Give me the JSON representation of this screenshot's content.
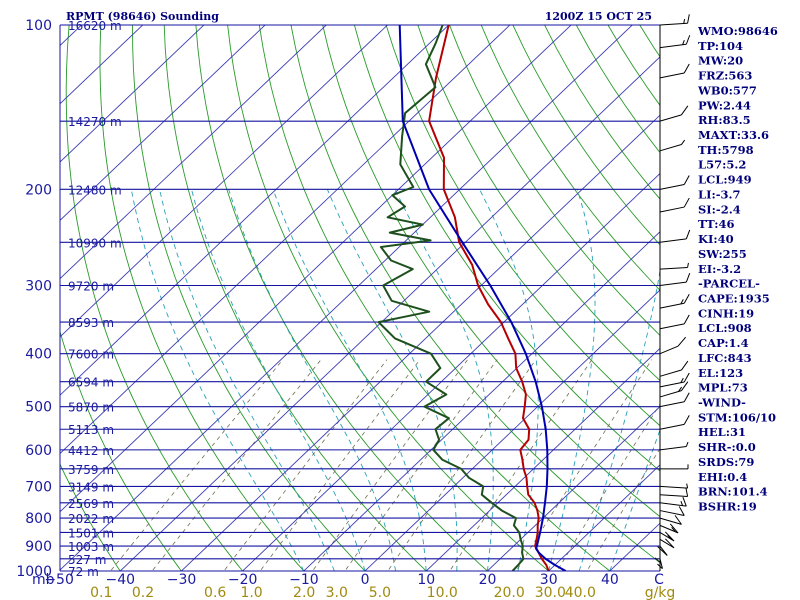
{
  "chart_data": {
    "type": "skew-t log-p sounding",
    "title": "RPMT (98646) Sounding",
    "valid_time": "1200Z 15 OCT 25",
    "pressure_axis": {
      "label": "mb",
      "ticks": [
        "100",
        "200",
        "300",
        "400",
        "500",
        "600",
        "700",
        "800",
        "900",
        "1000"
      ],
      "ticks_values": [
        100,
        200,
        300,
        400,
        500,
        600,
        700,
        800,
        900,
        1000
      ],
      "range": [
        100,
        1000
      ]
    },
    "height_levels": [
      {
        "p": 100,
        "label": "16620 m"
      },
      {
        "p": 150,
        "label": "14270 m"
      },
      {
        "p": 200,
        "label": "12480 m"
      },
      {
        "p": 250,
        "label": "10990 m"
      },
      {
        "p": 300,
        "label": "9720 m"
      },
      {
        "p": 350,
        "label": "8593 m"
      },
      {
        "p": 400,
        "label": "7600 m"
      },
      {
        "p": 450,
        "label": "6594 m"
      },
      {
        "p": 500,
        "label": "5870 m"
      },
      {
        "p": 550,
        "label": "5113 m"
      },
      {
        "p": 600,
        "label": "4412 m"
      },
      {
        "p": 650,
        "label": "3759 m"
      },
      {
        "p": 700,
        "label": "3149 m"
      },
      {
        "p": 750,
        "label": "2569 m"
      },
      {
        "p": 800,
        "label": "2022 m"
      },
      {
        "p": 850,
        "label": "1501 m"
      },
      {
        "p": 900,
        "label": "1003 m"
      },
      {
        "p": 950,
        "label": "527 m"
      },
      {
        "p": 1000,
        "label": "72 m"
      }
    ],
    "temperature_axis": {
      "label": "C",
      "ticks": [
        "−50",
        "−40",
        "−30",
        "−20",
        "−10",
        "0",
        "10",
        "20",
        "30",
        "40"
      ],
      "ticks_values": [
        -50,
        -40,
        -30,
        -20,
        -10,
        0,
        10,
        20,
        30,
        40
      ],
      "range": [
        -50,
        50
      ]
    },
    "mixing_ratio_axis": {
      "label": "g/kg",
      "ticks": [
        "0.1",
        "0.2",
        "0.6",
        "1.0",
        "2.0",
        "3.0",
        "5.0",
        "10.0",
        "20.0",
        "30.0",
        "40.0"
      ],
      "ticks_values": [
        0.1,
        0.2,
        0.6,
        1.0,
        2.0,
        3.0,
        5.0,
        10.0,
        20.0,
        30.0,
        40.0
      ]
    },
    "series": [
      {
        "name": "Temperature",
        "color": "#b40000",
        "points": [
          [
            1000,
            30
          ],
          [
            975,
            28.6
          ],
          [
            950,
            26.8
          ],
          [
            925,
            25.2
          ],
          [
            900,
            23.5
          ],
          [
            875,
            22.6
          ],
          [
            850,
            21.6
          ],
          [
            825,
            20.4
          ],
          [
            800,
            19.3
          ],
          [
            775,
            17.8
          ],
          [
            750,
            16.0
          ],
          [
            725,
            13.6
          ],
          [
            700,
            12.0
          ],
          [
            675,
            10.4
          ],
          [
            650,
            8.4
          ],
          [
            625,
            6.6
          ],
          [
            600,
            4.6
          ],
          [
            575,
            4.2
          ],
          [
            550,
            2.5
          ],
          [
            525,
            -0.4
          ],
          [
            500,
            -2.1
          ],
          [
            475,
            -4.0
          ],
          [
            450,
            -6.8
          ],
          [
            425,
            -10.1
          ],
          [
            400,
            -12.7
          ],
          [
            375,
            -16.5
          ],
          [
            350,
            -20.5
          ],
          [
            325,
            -25.6
          ],
          [
            300,
            -30.5
          ],
          [
            275,
            -35.0
          ],
          [
            250,
            -41.0
          ],
          [
            225,
            -46.0
          ],
          [
            200,
            -52.6
          ],
          [
            175,
            -58.0
          ],
          [
            150,
            -66.7
          ],
          [
            125,
            -73.0
          ],
          [
            100,
            -80.0
          ]
        ]
      },
      {
        "name": "Dewpoint",
        "color": "#1e501e",
        "points": [
          [
            1000,
            24.1
          ],
          [
            975,
            24.0
          ],
          [
            950,
            23.8
          ],
          [
            925,
            22.5
          ],
          [
            900,
            21.5
          ],
          [
            875,
            20.0
          ],
          [
            850,
            18.6
          ],
          [
            825,
            16.5
          ],
          [
            800,
            15.6
          ],
          [
            775,
            12.0
          ],
          [
            750,
            9.0
          ],
          [
            725,
            6.0
          ],
          [
            700,
            4.8
          ],
          [
            675,
            1.0
          ],
          [
            650,
            -1.8
          ],
          [
            625,
            -6.5
          ],
          [
            600,
            -9.6
          ],
          [
            575,
            -10.4
          ],
          [
            550,
            -12.8
          ],
          [
            525,
            -12.5
          ],
          [
            500,
            -18.5
          ],
          [
            475,
            -17.0
          ],
          [
            450,
            -22.5
          ],
          [
            425,
            -22.5
          ],
          [
            400,
            -26.5
          ],
          [
            375,
            -35.0
          ],
          [
            350,
            -40.5
          ],
          [
            335,
            -34.0
          ],
          [
            320,
            -42.0
          ],
          [
            300,
            -46.0
          ],
          [
            280,
            -44.0
          ],
          [
            270,
            -49.0
          ],
          [
            255,
            -53.0
          ],
          [
            248,
            -46.0
          ],
          [
            240,
            -54.0
          ],
          [
            232,
            -50.0
          ],
          [
            225,
            -57.0
          ],
          [
            215,
            -56.0
          ],
          [
            205,
            -60.0
          ],
          [
            198,
            -58.0
          ],
          [
            180,
            -64.0
          ],
          [
            160,
            -68.5
          ],
          [
            145,
            -72.0
          ],
          [
            130,
            -71.5
          ],
          [
            118,
            -77.0
          ],
          [
            108,
            -79.0
          ],
          [
            100,
            -81.0
          ]
        ]
      },
      {
        "name": "Parcel path",
        "color": "#0000b0",
        "points": [
          [
            1000,
            32.8
          ],
          [
            975,
            30.0
          ],
          [
            950,
            27.4
          ],
          [
            925,
            25.2
          ],
          [
            910,
            24.1
          ],
          [
            900,
            23.8
          ],
          [
            850,
            22.0
          ],
          [
            800,
            20.0
          ],
          [
            750,
            17.7
          ],
          [
            700,
            15.2
          ],
          [
            650,
            12.3
          ],
          [
            600,
            9.0
          ],
          [
            550,
            5.2
          ],
          [
            500,
            0.7
          ],
          [
            450,
            -4.6
          ],
          [
            400,
            -11.0
          ],
          [
            350,
            -18.8
          ],
          [
            300,
            -28.5
          ],
          [
            250,
            -40.5
          ],
          [
            200,
            -55.0
          ],
          [
            150,
            -71.0
          ],
          [
            100,
            -88.0
          ]
        ]
      }
    ],
    "wind_barbs": [
      {
        "p": 950,
        "dir": 175,
        "spd": 5
      },
      {
        "p": 925,
        "dir": 180,
        "spd": 5
      },
      {
        "p": 900,
        "dir": 165,
        "spd": 10
      },
      {
        "p": 875,
        "dir": 150,
        "spd": 10
      },
      {
        "p": 850,
        "dir": 150,
        "spd": 15
      },
      {
        "p": 825,
        "dir": 140,
        "spd": 15
      },
      {
        "p": 800,
        "dir": 130,
        "spd": 10
      },
      {
        "p": 775,
        "dir": 120,
        "spd": 10
      },
      {
        "p": 750,
        "dir": 110,
        "spd": 15
      },
      {
        "p": 725,
        "dir": 100,
        "spd": 10
      },
      {
        "p": 700,
        "dir": 100,
        "spd": 5
      },
      {
        "p": 650,
        "dir": 90,
        "spd": 5
      },
      {
        "p": 600,
        "dir": 70,
        "spd": 5
      },
      {
        "p": 550,
        "dir": 60,
        "spd": 10
      },
      {
        "p": 500,
        "dir": 60,
        "spd": 10
      },
      {
        "p": 480,
        "dir": 50,
        "spd": 15
      },
      {
        "p": 460,
        "dir": 60,
        "spd": 15
      },
      {
        "p": 440,
        "dir": 50,
        "spd": 10
      },
      {
        "p": 400,
        "dir": 40,
        "spd": 10
      },
      {
        "p": 360,
        "dir": 60,
        "spd": 10
      },
      {
        "p": 330,
        "dir": 60,
        "spd": 15
      },
      {
        "p": 300,
        "dir": 70,
        "spd": 10
      },
      {
        "p": 280,
        "dir": 80,
        "spd": 5
      },
      {
        "p": 250,
        "dir": 70,
        "spd": 10
      },
      {
        "p": 220,
        "dir": 60,
        "spd": 10
      },
      {
        "p": 200,
        "dir": 60,
        "spd": 10
      },
      {
        "p": 170,
        "dir": 50,
        "spd": 5
      },
      {
        "p": 150,
        "dir": 50,
        "spd": 10
      },
      {
        "p": 125,
        "dir": 60,
        "spd": 10
      },
      {
        "p": 110,
        "dir": 70,
        "spd": 15
      },
      {
        "p": 100,
        "dir": 80,
        "spd": 15
      }
    ],
    "indices": [
      "WMO:98646",
      "TP:104",
      "MW:20",
      "FRZ:563",
      "WB0:577",
      "PW:2.44",
      "RH:83.5",
      "MAXT:33.6",
      "TH:5798",
      "L57:5.2",
      "LCL:949",
      "LI:-3.7",
      "SI:-2.4",
      "TT:46",
      "KI:40",
      "SW:255",
      "EI:-3.2",
      "-PARCEL-",
      "CAPE:1935",
      "CINH:19",
      "LCL:908",
      "CAP:1.4",
      "LFC:843",
      "EL:123",
      "MPL:73",
      "-WIND-",
      "STM:106/10",
      "HEL:31",
      "SHR-:0.0",
      "SRDS:79",
      "EHI:0.4",
      "BRN:101.4",
      "BSHR:19"
    ],
    "colors": {
      "isobar": "#1414a0",
      "isotherm": "#3c3cb4",
      "dry_adiabat": "#2a9a2a",
      "moist_adiabat": "#2aa0b8",
      "mixing_ratio": "#6e6e50",
      "text": "#00007a"
    }
  }
}
